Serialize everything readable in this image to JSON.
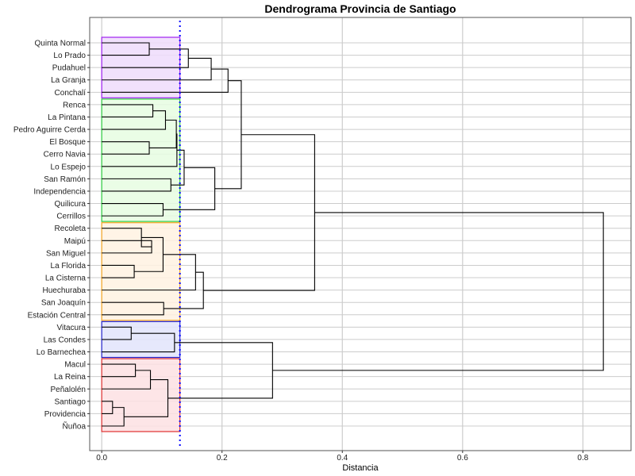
{
  "chart_data": {
    "type": "dendrogram",
    "title": "Dendrograma Provincia de Santiago",
    "xlabel": "Distancia",
    "ylabel": "",
    "xlim": [
      -0.02,
      0.88
    ],
    "x_ticks": [
      0.0,
      0.2,
      0.4,
      0.6,
      0.8
    ],
    "x_tick_labels": [
      "0.0",
      "0.2",
      "0.4",
      "0.6",
      "0.8"
    ],
    "grid": true,
    "cut_height": 0.13,
    "cut_line_color": "#0000ff",
    "leaves": [
      "Quinta Normal",
      "Lo Prado",
      "Pudahuel",
      "La Granja",
      "Conchalí",
      "Renca",
      "La Pintana",
      "Pedro Aguirre Cerda",
      "El Bosque",
      "Cerro Navia",
      "Lo Espejo",
      "San Ramón",
      "Independencia",
      "Quilicura",
      "Cerrillos",
      "Recoleta",
      "Maipú",
      "San Miguel",
      "La Florida",
      "La Cisterna",
      "Huechuraba",
      "San Joaquín",
      "Estación Central",
      "Vitacura",
      "Las Condes",
      "Lo Barnechea",
      "Macul",
      "La Reina",
      "Peñalolén",
      "Santiago",
      "Providencia",
      "Ñuñoa"
    ],
    "clusters": [
      {
        "start": 0,
        "end": 4,
        "border": "#a020f0",
        "fill": "#efdcfb"
      },
      {
        "start": 5,
        "end": 14,
        "border": "#2ecc40",
        "fill": "#e6fde2"
      },
      {
        "start": 15,
        "end": 22,
        "border": "#f5a623",
        "fill": "#fff2e2"
      },
      {
        "start": 23,
        "end": 25,
        "border": "#2222cc",
        "fill": "#e2e4fb"
      },
      {
        "start": 26,
        "end": 31,
        "border": "#e03030",
        "fill": "#fde0e3"
      }
    ],
    "merges": [
      {
        "a": "L0",
        "b": "L1",
        "h": 0.079
      },
      {
        "a": "N0",
        "b": "L2",
        "h": 0.144
      },
      {
        "a": "N1",
        "b": "L3",
        "h": 0.182
      },
      {
        "a": "N2",
        "b": "L4",
        "h": 0.21
      },
      {
        "a": "L5",
        "b": "L6",
        "h": 0.085
      },
      {
        "a": "N4",
        "b": "L7",
        "h": 0.106
      },
      {
        "a": "L8",
        "b": "L9",
        "h": 0.079
      },
      {
        "a": "N5",
        "b": "N6",
        "h": 0.124
      },
      {
        "a": "N7",
        "b": "L10",
        "h": 0.125
      },
      {
        "a": "L11",
        "b": "L12",
        "h": 0.115
      },
      {
        "a": "N8",
        "b": "N9",
        "h": 0.137
      },
      {
        "a": "L13",
        "b": "L14",
        "h": 0.102
      },
      {
        "a": "N10",
        "b": "N11",
        "h": 0.188
      },
      {
        "a": "N3",
        "b": "N12",
        "h": 0.232
      },
      {
        "a": "L16",
        "b": "L17",
        "h": 0.083
      },
      {
        "a": "L15",
        "b": "N14",
        "h": 0.066
      },
      {
        "a": "L18",
        "b": "L19",
        "h": 0.054
      },
      {
        "a": "N15",
        "b": "N16",
        "h": 0.102
      },
      {
        "a": "N17",
        "b": "L20",
        "h": 0.156
      },
      {
        "a": "L21",
        "b": "L22",
        "h": 0.103
      },
      {
        "a": "N18",
        "b": "N19",
        "h": 0.169
      },
      {
        "a": "N13",
        "b": "N20",
        "h": 0.354
      },
      {
        "a": "L23",
        "b": "L24",
        "h": 0.049
      },
      {
        "a": "N22",
        "b": "L25",
        "h": 0.121
      },
      {
        "a": "L26",
        "b": "L27",
        "h": 0.056
      },
      {
        "a": "N24",
        "b": "L28",
        "h": 0.081
      },
      {
        "a": "L29",
        "b": "L30",
        "h": 0.018
      },
      {
        "a": "N26",
        "b": "L31",
        "h": 0.037
      },
      {
        "a": "N25",
        "b": "N27",
        "h": 0.11
      },
      {
        "a": "N23",
        "b": "N28",
        "h": 0.284
      },
      {
        "a": "N21",
        "b": "N29",
        "h": 0.834
      }
    ]
  }
}
